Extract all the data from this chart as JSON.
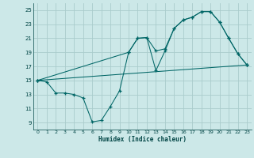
{
  "xlabel": "Humidex (Indice chaleur)",
  "bg_color": "#cce8e8",
  "grid_color": "#aacccc",
  "line_color": "#006666",
  "xlim": [
    -0.5,
    23.5
  ],
  "ylim": [
    8.0,
    26.0
  ],
  "xticks": [
    0,
    1,
    2,
    3,
    4,
    5,
    6,
    7,
    8,
    9,
    10,
    11,
    12,
    13,
    14,
    15,
    16,
    17,
    18,
    19,
    20,
    21,
    22,
    23
  ],
  "yticks": [
    9,
    11,
    13,
    15,
    17,
    19,
    21,
    23,
    25
  ],
  "line1_x": [
    0,
    1,
    2,
    3,
    4,
    5,
    6,
    7,
    8,
    9,
    10,
    11,
    12,
    13,
    14,
    15,
    16,
    17,
    18,
    19,
    20,
    21,
    22,
    23
  ],
  "line1_y": [
    15,
    14.8,
    13.2,
    13.2,
    13.0,
    12.5,
    9.1,
    9.3,
    11.3,
    13.5,
    19.0,
    21.0,
    21.1,
    16.4,
    19.2,
    22.4,
    23.6,
    24.0,
    24.8,
    24.8,
    23.3,
    21.0,
    18.8,
    17.2
  ],
  "line2_x": [
    0,
    10,
    11,
    12,
    13,
    14,
    15,
    16,
    17,
    18,
    19,
    20,
    21,
    22,
    23
  ],
  "line2_y": [
    15,
    19.0,
    21.0,
    21.1,
    19.2,
    19.5,
    22.4,
    23.6,
    24.0,
    24.8,
    24.8,
    23.3,
    21.0,
    18.8,
    17.2
  ],
  "line3_x": [
    0,
    23
  ],
  "line3_y": [
    15,
    17.2
  ]
}
